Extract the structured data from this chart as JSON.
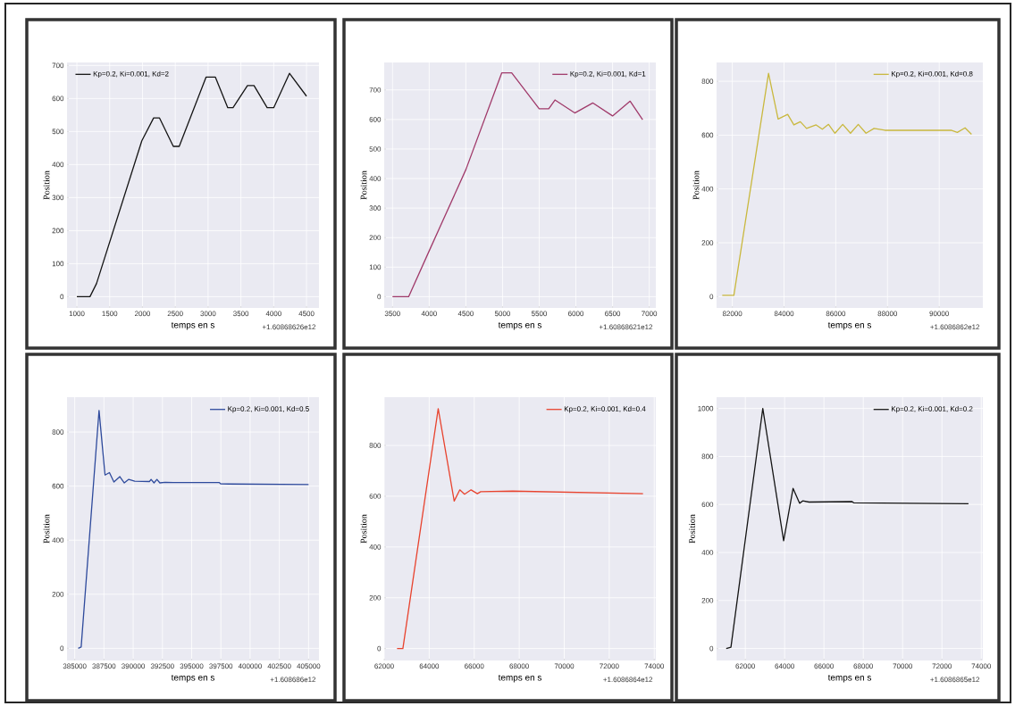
{
  "chart_data": [
    {
      "type": "line",
      "xlabel": "temps en s",
      "ylabel": "Position",
      "annotations": [
        "+1.60868626e12"
      ],
      "xlim": [
        850,
        4690
      ],
      "ylim": [
        -34,
        709
      ],
      "xticks": [
        1000,
        1500,
        2000,
        2500,
        3000,
        3500,
        4000,
        4500
      ],
      "yticks": [
        0,
        100,
        200,
        300,
        400,
        500,
        600,
        700
      ],
      "grid": true,
      "legend": "top left",
      "x": [
        1000,
        1200,
        1300,
        1990,
        2170,
        2260,
        2470,
        2560,
        2970,
        3110,
        3300,
        3380,
        3600,
        3700,
        3900,
        4000,
        4240,
        4500
      ],
      "series": [
        {
          "name": "Kp=0.2, Ki=0.001, Kd=2",
          "color": "#141414",
          "values": [
            0,
            0,
            40,
            472,
            541,
            541,
            455,
            455,
            665,
            665,
            572,
            572,
            639,
            639,
            572,
            572,
            676,
            607
          ]
        }
      ]
    },
    {
      "type": "line",
      "xlabel": "temps en s",
      "ylabel": "Position",
      "annotations": [
        "+1.60868621e12"
      ],
      "xlim": [
        3387,
        7090
      ],
      "ylim": [
        -38,
        793
      ],
      "xticks": [
        3500,
        4000,
        4500,
        5000,
        5500,
        6000,
        6500,
        7000
      ],
      "yticks": [
        0,
        100,
        200,
        300,
        400,
        500,
        600,
        700
      ],
      "grid": true,
      "legend": "top right",
      "x": [
        3500,
        3720,
        4000,
        4500,
        4990,
        5125,
        5500,
        5630,
        5715,
        5985,
        6230,
        6500,
        6740,
        6910
      ],
      "series": [
        {
          "name": "Kp=0.2, Ki=0.001, Kd=1",
          "color": "#a03a6a",
          "values": [
            0,
            0,
            155,
            430,
            758,
            758,
            636,
            636,
            666,
            622,
            656,
            612,
            662,
            599
          ]
        }
      ]
    },
    {
      "type": "line",
      "xlabel": "temps en s",
      "ylabel": "Position",
      "annotations": [
        "+1.6086862e12"
      ],
      "xlim": [
        81391,
        91688
      ],
      "ylim": [
        -42,
        870
      ],
      "xticks": [
        82000,
        84000,
        86000,
        88000,
        90000
      ],
      "yticks": [
        0,
        200,
        400,
        600,
        800
      ],
      "grid": true,
      "legend": "top right",
      "x": [
        81610,
        82060,
        83400,
        83770,
        84140,
        84380,
        84630,
        84870,
        85240,
        85480,
        85720,
        85970,
        86270,
        86570,
        86870,
        87170,
        87480,
        87900,
        90460,
        90700,
        91000,
        91250
      ],
      "series": [
        {
          "name": "Kp=0.2, Ki=0.001, Kd=0.8",
          "color": "#c9b83e",
          "values": [
            5,
            5,
            830,
            660,
            677,
            638,
            650,
            625,
            638,
            622,
            640,
            607,
            640,
            607,
            640,
            607,
            625,
            618,
            618,
            610,
            627,
            603
          ]
        }
      ]
    },
    {
      "type": "line",
      "xlabel": "temps en s",
      "ylabel": "Position",
      "annotations": [
        "+1.608686e12"
      ],
      "xlim": [
        384340,
        405890
      ],
      "ylim": [
        -45,
        929
      ],
      "xticks": [
        385000,
        387500,
        390000,
        392500,
        395000,
        397500,
        400000,
        402500,
        405000
      ],
      "yticks": [
        0,
        200,
        400,
        600,
        800
      ],
      "grid": true,
      "legend": "top right",
      "x": [
        385300,
        385550,
        387080,
        387590,
        387970,
        388350,
        388860,
        389240,
        389620,
        390130,
        391400,
        391530,
        391780,
        392030,
        392280,
        392730,
        393440,
        397370,
        397500,
        405000
      ],
      "series": [
        {
          "name": "Kp=0.2, Ki=0.001, Kd=0.5",
          "color": "#2e4a9c",
          "values": [
            0,
            5,
            880,
            641,
            650,
            615,
            635,
            612,
            625,
            618,
            617,
            625,
            612,
            625,
            612,
            614,
            613,
            613,
            608,
            606
          ]
        }
      ]
    },
    {
      "type": "line",
      "xlabel": "temps en s",
      "ylabel": "Position",
      "annotations": [
        "+1.6086864e12"
      ],
      "xlim": [
        62000,
        74070
      ],
      "ylim": [
        -47,
        990
      ],
      "xticks": [
        62000,
        64000,
        66000,
        68000,
        70000,
        72000,
        74000
      ],
      "yticks": [
        0,
        200,
        400,
        600,
        800
      ],
      "grid": true,
      "legend": "top right",
      "x": [
        62570,
        62830,
        64400,
        65110,
        65360,
        65570,
        65860,
        66140,
        66290,
        67710,
        73500
      ],
      "series": [
        {
          "name": "Kp=0.2, Ki=0.001, Kd=0.4",
          "color": "#e8432e",
          "values": [
            0,
            0,
            945,
            581,
            625,
            608,
            625,
            610,
            618,
            620,
            610
          ]
        }
      ]
    },
    {
      "type": "line",
      "xlabel": "temps en s",
      "ylabel": "Position",
      "annotations": [
        "+1.6086865e12"
      ],
      "xlim": [
        60540,
        74080
      ],
      "ylim": [
        -50,
        1047
      ],
      "xticks": [
        62000,
        64000,
        66000,
        68000,
        70000,
        72000,
        74000
      ],
      "yticks": [
        0,
        200,
        400,
        600,
        800,
        1000
      ],
      "grid": true,
      "legend": "top right",
      "x": [
        61030,
        61270,
        62890,
        63950,
        64430,
        64760,
        64920,
        65240,
        67430,
        67510,
        73350
      ],
      "series": [
        {
          "name": "Kp=0.2, Ki=0.001, Kd=0.2",
          "color": "#141414",
          "values": [
            0,
            5,
            1000,
            449,
            667,
            605,
            615,
            610,
            612,
            607,
            603
          ]
        }
      ]
    }
  ]
}
